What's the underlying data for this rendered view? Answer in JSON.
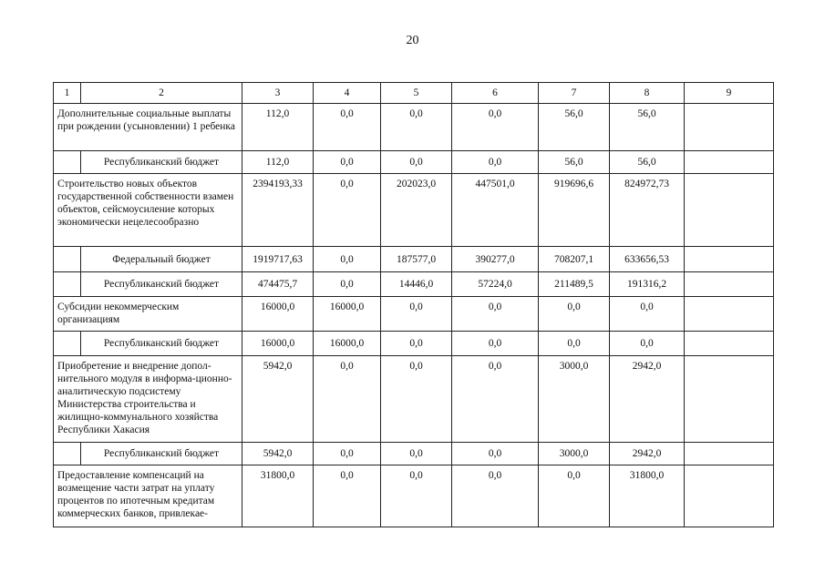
{
  "page_number": "20",
  "table": {
    "headers": [
      "1",
      "2",
      "3",
      "4",
      "5",
      "6",
      "7",
      "8",
      "9"
    ],
    "rows": [
      {
        "type": "main",
        "label": "Дополнительные социальные выплаты при рождении (усыновлении) 1 ребенка",
        "values": [
          "112,0",
          "0,0",
          "0,0",
          "0,0",
          "56,0",
          "56,0",
          ""
        ]
      },
      {
        "type": "sub",
        "label": "Республиканский бюджет",
        "values": [
          "112,0",
          "0,0",
          "0,0",
          "0,0",
          "56,0",
          "56,0",
          ""
        ]
      },
      {
        "type": "main",
        "label": "Строительство новых объектов государственной собственности взамен объектов, сейсмоусиление которых экономически нецелесообразно",
        "values": [
          "2394193,33",
          "0,0",
          "202023,0",
          "447501,0",
          "919696,6",
          "824972,73",
          ""
        ]
      },
      {
        "type": "sub",
        "label": "Федеральный бюджет",
        "values": [
          "1919717,63",
          "0,0",
          "187577,0",
          "390277,0",
          "708207,1",
          "633656,53",
          ""
        ]
      },
      {
        "type": "sub",
        "label": "Республиканский бюджет",
        "values": [
          "474475,7",
          "0,0",
          "14446,0",
          "57224,0",
          "211489,5",
          "191316,2",
          ""
        ]
      },
      {
        "type": "main",
        "label": "Субсидии некоммерческим организациям",
        "values": [
          "16000,0",
          "16000,0",
          "0,0",
          "0,0",
          "0,0",
          "0,0",
          ""
        ]
      },
      {
        "type": "sub",
        "label": "Республиканский бюджет",
        "values": [
          "16000,0",
          "16000,0",
          "0,0",
          "0,0",
          "0,0",
          "0,0",
          ""
        ]
      },
      {
        "type": "main",
        "label": "Приобретение и внедрение допол-нительного модуля в информа-ционно-аналитическую подсистему Министерства строительства и жилищно-коммунального хозяйства Республики Хакасия",
        "values": [
          "5942,0",
          "0,0",
          "0,0",
          "0,0",
          "3000,0",
          "2942,0",
          ""
        ]
      },
      {
        "type": "sub",
        "label": "Республиканский бюджет",
        "values": [
          "5942,0",
          "0,0",
          "0,0",
          "0,0",
          "3000,0",
          "2942,0",
          ""
        ]
      },
      {
        "type": "main",
        "label": "Предоставление компенсаций на возмещение части затрат на уплату процентов по ипотечным кредитам коммерческих банков, привлекае-",
        "values": [
          "31800,0",
          "0,0",
          "0,0",
          "0,0",
          "0,0",
          "31800,0",
          ""
        ]
      }
    ]
  }
}
